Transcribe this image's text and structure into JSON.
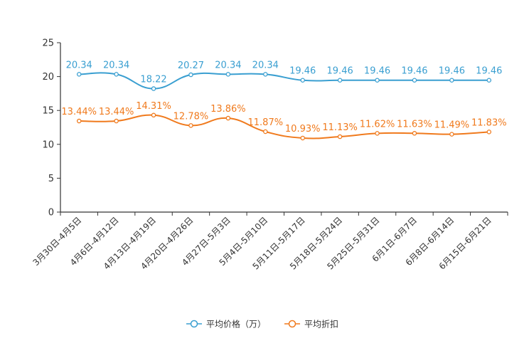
{
  "chart_data": {
    "type": "line",
    "categories": [
      "3月30日-4月5日",
      "4月6日-4月12日",
      "4月13日-4月19日",
      "4月20日-4月26日",
      "4月27日-5月3日",
      "5月4日-5月10日",
      "5月11日-5月17日",
      "5月18日-5月24日",
      "5月25日-5月31日",
      "6月1日-6月7日",
      "6月8日-6月14日",
      "6月15日-6月21日"
    ],
    "series": [
      {
        "name": "平均价格（万）",
        "color": "#3a9fd1",
        "values": [
          20.34,
          20.34,
          18.22,
          20.27,
          20.34,
          20.34,
          19.46,
          19.46,
          19.46,
          19.46,
          19.46,
          19.46
        ],
        "labels": [
          "20.34",
          "20.34",
          "18.22",
          "20.27",
          "20.34",
          "20.34",
          "19.46",
          "19.46",
          "19.46",
          "19.46",
          "19.46",
          "19.46"
        ]
      },
      {
        "name": "平均折扣",
        "color": "#f07a1d",
        "values": [
          13.44,
          13.44,
          14.31,
          12.78,
          13.86,
          11.87,
          10.93,
          11.13,
          11.62,
          11.63,
          11.49,
          11.83
        ],
        "labels": [
          "13.44%",
          "13.44%",
          "14.31%",
          "12.78%",
          "13.86%",
          "11.87%",
          "10.93%",
          "11.13%",
          "11.62%",
          "11.63%",
          "11.49%",
          "11.83%"
        ]
      }
    ],
    "y_ticks": [
      "0",
      "5",
      "10",
      "15",
      "20",
      "25"
    ],
    "ylim": [
      0,
      25
    ],
    "title": "",
    "xlabel": "",
    "ylabel": "",
    "legend": "bottom-center"
  }
}
